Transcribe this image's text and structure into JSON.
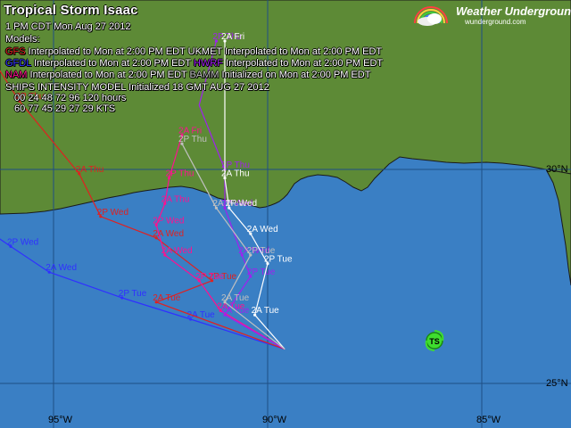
{
  "title": "Tropical Storm Isaac",
  "timestamp": "1 PM CDT Mon Aug 27 2012",
  "models_heading": "Models:",
  "legend_rows": [
    [
      {
        "name": "GFS",
        "color": "#e02020",
        "note": "Interpolated to Mon at 2:00 PM EDT"
      },
      {
        "name": "UKMET",
        "color": "#ffffff",
        "note": "Interpolated to Mon at 2:00 PM EDT"
      }
    ],
    [
      {
        "name": "GFDL",
        "color": "#3030ff",
        "note": "Interpolated to Mon at 2:00 PM EDT"
      },
      {
        "name": "HWRF",
        "color": "#a020f0",
        "note": "Interpolated to Mon at 2:00 PM EDT"
      }
    ],
    [
      {
        "name": "NAM",
        "color": "#ff1090",
        "note": "Interpolated to Mon at 2:00 PM EDT"
      },
      {
        "name": "BAMM",
        "color": "#c0c0c0",
        "note": "Initialized on Mon at 2:00 PM EDT"
      }
    ]
  ],
  "ships_line": "SHIPS INTENSITY MODEL Initialized 18 GMT AUG 27 2012",
  "ships_hours_line": "00   24   48   72   96   120 hours",
  "ships_kts_line": "60   77   45   29   27   29    KTS",
  "brand": {
    "name": "Weather Underground",
    "sub": "wunderground.com"
  },
  "lat_labels": [
    "30°N",
    "25°N"
  ],
  "lon_labels": [
    "95°W",
    "90°W",
    "85°W"
  ],
  "storm_marker": "TS",
  "colors": {
    "ocean": "#3a7fc4",
    "land": "#5d8a36",
    "coast": "#1a1a1a",
    "grid": "#1e4f85"
  },
  "tracks": [
    {
      "model": "GFDL",
      "color": "#3030ff",
      "points": [
        {
          "lon": -89.6,
          "lat": 25.8,
          "label": ""
        },
        {
          "lon": -91.8,
          "lat": 26.5,
          "label": "2A Tue"
        },
        {
          "lon": -93.4,
          "lat": 27.0,
          "label": "2P Tue"
        },
        {
          "lon": -95.1,
          "lat": 27.6,
          "label": "2A Wed"
        },
        {
          "lon": -96.0,
          "lat": 28.2,
          "label": "2P Wed"
        },
        {
          "lon": -97.3,
          "lat": 29.1,
          "label": "2A Thu"
        },
        {
          "lon": -98.6,
          "lat": 30.3,
          "label": "2P Thu"
        },
        {
          "lon": -99.8,
          "lat": 31.4,
          "label": ""
        }
      ]
    },
    {
      "model": "GFS",
      "color": "#e02020",
      "points": [
        {
          "lon": -89.6,
          "lat": 25.8,
          "label": ""
        },
        {
          "lon": -92.6,
          "lat": 26.9,
          "label": "2A Tue"
        },
        {
          "lon": -91.3,
          "lat": 27.4,
          "label": "2P Tue"
        },
        {
          "lon": -92.6,
          "lat": 28.4,
          "label": "2A Wed"
        },
        {
          "lon": -93.9,
          "lat": 28.9,
          "label": "2P Wed"
        },
        {
          "lon": -94.4,
          "lat": 29.9,
          "label": "2A Thu"
        },
        {
          "lon": -95.8,
          "lat": 31.6,
          "label": "2P Thu"
        },
        {
          "lon": -96.7,
          "lat": 33.0,
          "label": ""
        }
      ]
    },
    {
      "model": "NAM",
      "color": "#ff1090",
      "points": [
        {
          "lon": -89.6,
          "lat": 25.8,
          "label": ""
        },
        {
          "lon": -91.1,
          "lat": 26.7,
          "label": "2A Tue"
        },
        {
          "lon": -91.6,
          "lat": 27.4,
          "label": "2P Tue"
        },
        {
          "lon": -92.4,
          "lat": 28.0,
          "label": "2A Wed"
        },
        {
          "lon": -92.6,
          "lat": 28.7,
          "label": "2P Wed"
        },
        {
          "lon": -92.4,
          "lat": 29.2,
          "label": "2A Thu"
        },
        {
          "lon": -92.3,
          "lat": 29.8,
          "label": "2P Thu"
        },
        {
          "lon": -92.0,
          "lat": 30.8,
          "label": "2A Fri"
        }
      ]
    },
    {
      "model": "HWRF",
      "color": "#a020f0",
      "points": [
        {
          "lon": -89.6,
          "lat": 25.8,
          "label": ""
        },
        {
          "lon": -91.0,
          "lat": 26.6,
          "label": "2A Tue"
        },
        {
          "lon": -90.4,
          "lat": 27.5,
          "label": "2P Tue"
        },
        {
          "lon": -90.6,
          "lat": 28.0,
          "label": "2A Wed"
        },
        {
          "lon": -91.0,
          "lat": 29.1,
          "label": "2P Wed"
        },
        {
          "lon": -91.0,
          "lat": 30.0,
          "label": "2P Thu"
        },
        {
          "lon": -91.6,
          "lat": 31.5,
          "label": ""
        },
        {
          "lon": -91.2,
          "lat": 33.0,
          "label": "2P Thu"
        }
      ]
    },
    {
      "model": "UKMET",
      "color": "#ffffff",
      "points": [
        {
          "lon": -89.6,
          "lat": 25.8,
          "label": ""
        },
        {
          "lon": -90.3,
          "lat": 26.6,
          "label": "2A Tue"
        },
        {
          "lon": -90.0,
          "lat": 27.8,
          "label": "2P Tue"
        },
        {
          "lon": -90.4,
          "lat": 28.5,
          "label": "2A Wed"
        },
        {
          "lon": -90.9,
          "lat": 29.1,
          "label": "2P Wed"
        },
        {
          "lon": -91.0,
          "lat": 29.8,
          "label": "2A Thu"
        },
        {
          "lon": -91.0,
          "lat": 33.0,
          "label": "2A Fri"
        }
      ]
    },
    {
      "model": "BAMM",
      "color": "#c0c0c0",
      "points": [
        {
          "lon": -89.6,
          "lat": 25.8,
          "label": ""
        },
        {
          "lon": -91.0,
          "lat": 26.9,
          "label": "2A Tue"
        },
        {
          "lon": -90.4,
          "lat": 28.0,
          "label": "2P Tue"
        },
        {
          "lon": -91.2,
          "lat": 29.1,
          "label": "2A Wed"
        },
        {
          "lon": -92.0,
          "lat": 30.6,
          "label": "2P Thu"
        }
      ]
    }
  ]
}
